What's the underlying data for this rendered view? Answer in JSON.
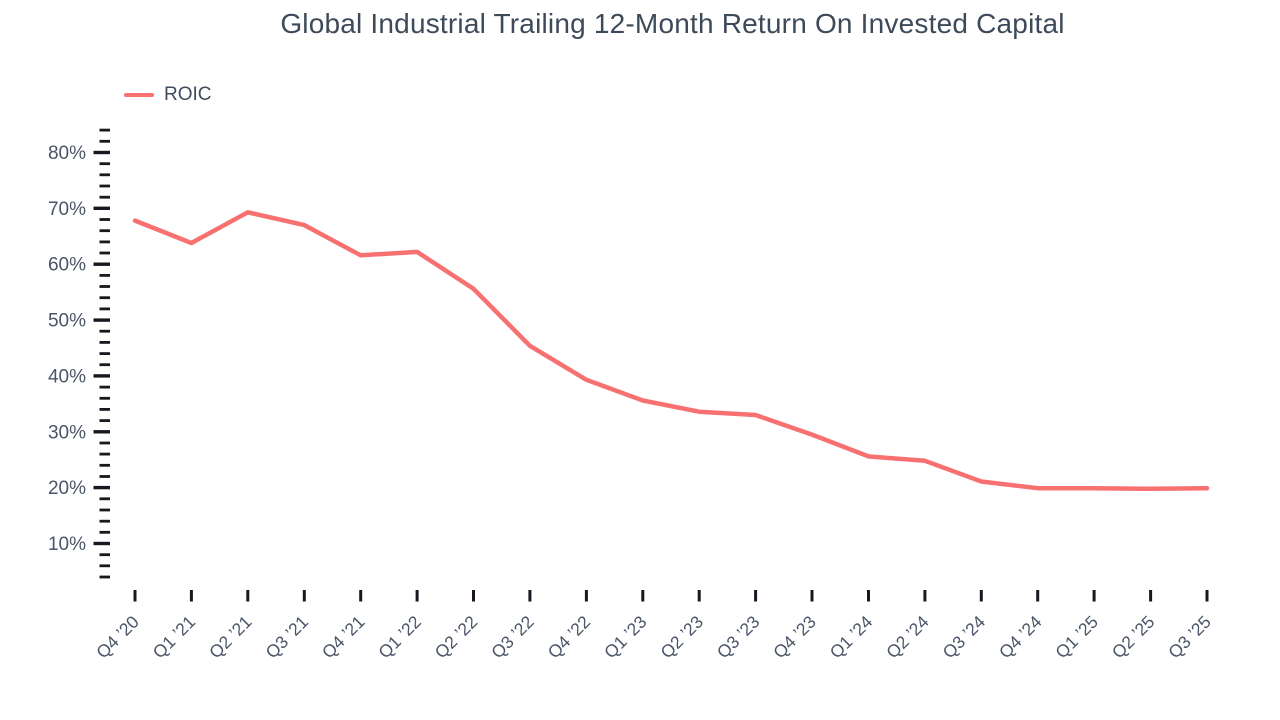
{
  "colors": {
    "line": "#f87171",
    "tick": "#16191f",
    "axis_label": "#4a5568",
    "title": "#3d4a59"
  },
  "chart_data": {
    "type": "line",
    "title": "Global Industrial Trailing 12-Month Return On Invested Capital",
    "xlabel": "",
    "ylabel": "",
    "grid": false,
    "legend_position": "top-left",
    "categories": [
      "Q4 ’20",
      "Q1 ’21",
      "Q2 ’21",
      "Q3 ’21",
      "Q4 ’21",
      "Q1 ’22",
      "Q2 ’22",
      "Q3 ’22",
      "Q4 ’22",
      "Q1 ’23",
      "Q2 ’23",
      "Q3 ’23",
      "Q4 ’23",
      "Q1 ’24",
      "Q2 ’24",
      "Q3 ’24",
      "Q4 ’24",
      "Q1 ’25",
      "Q2 ’25",
      "Q3 ’25"
    ],
    "series": [
      {
        "name": "ROIC",
        "values": [
          67.8,
          63.8,
          69.3,
          67.0,
          61.6,
          62.2,
          55.6,
          45.4,
          39.3,
          35.6,
          33.6,
          33.0,
          29.5,
          25.6,
          24.8,
          21.1,
          19.9,
          19.9,
          19.8,
          19.9
        ]
      }
    ],
    "ylim": [
      4,
      84
    ],
    "y_axis": {
      "unit": "%",
      "label_min": 10,
      "label_max": 80,
      "major_step": 10,
      "minor_step": 2,
      "tick_min": 4,
      "tick_max": 84,
      "tick_labels": [
        "10%",
        "20%",
        "30%",
        "40%",
        "50%",
        "60%",
        "70%",
        "80%"
      ]
    }
  }
}
